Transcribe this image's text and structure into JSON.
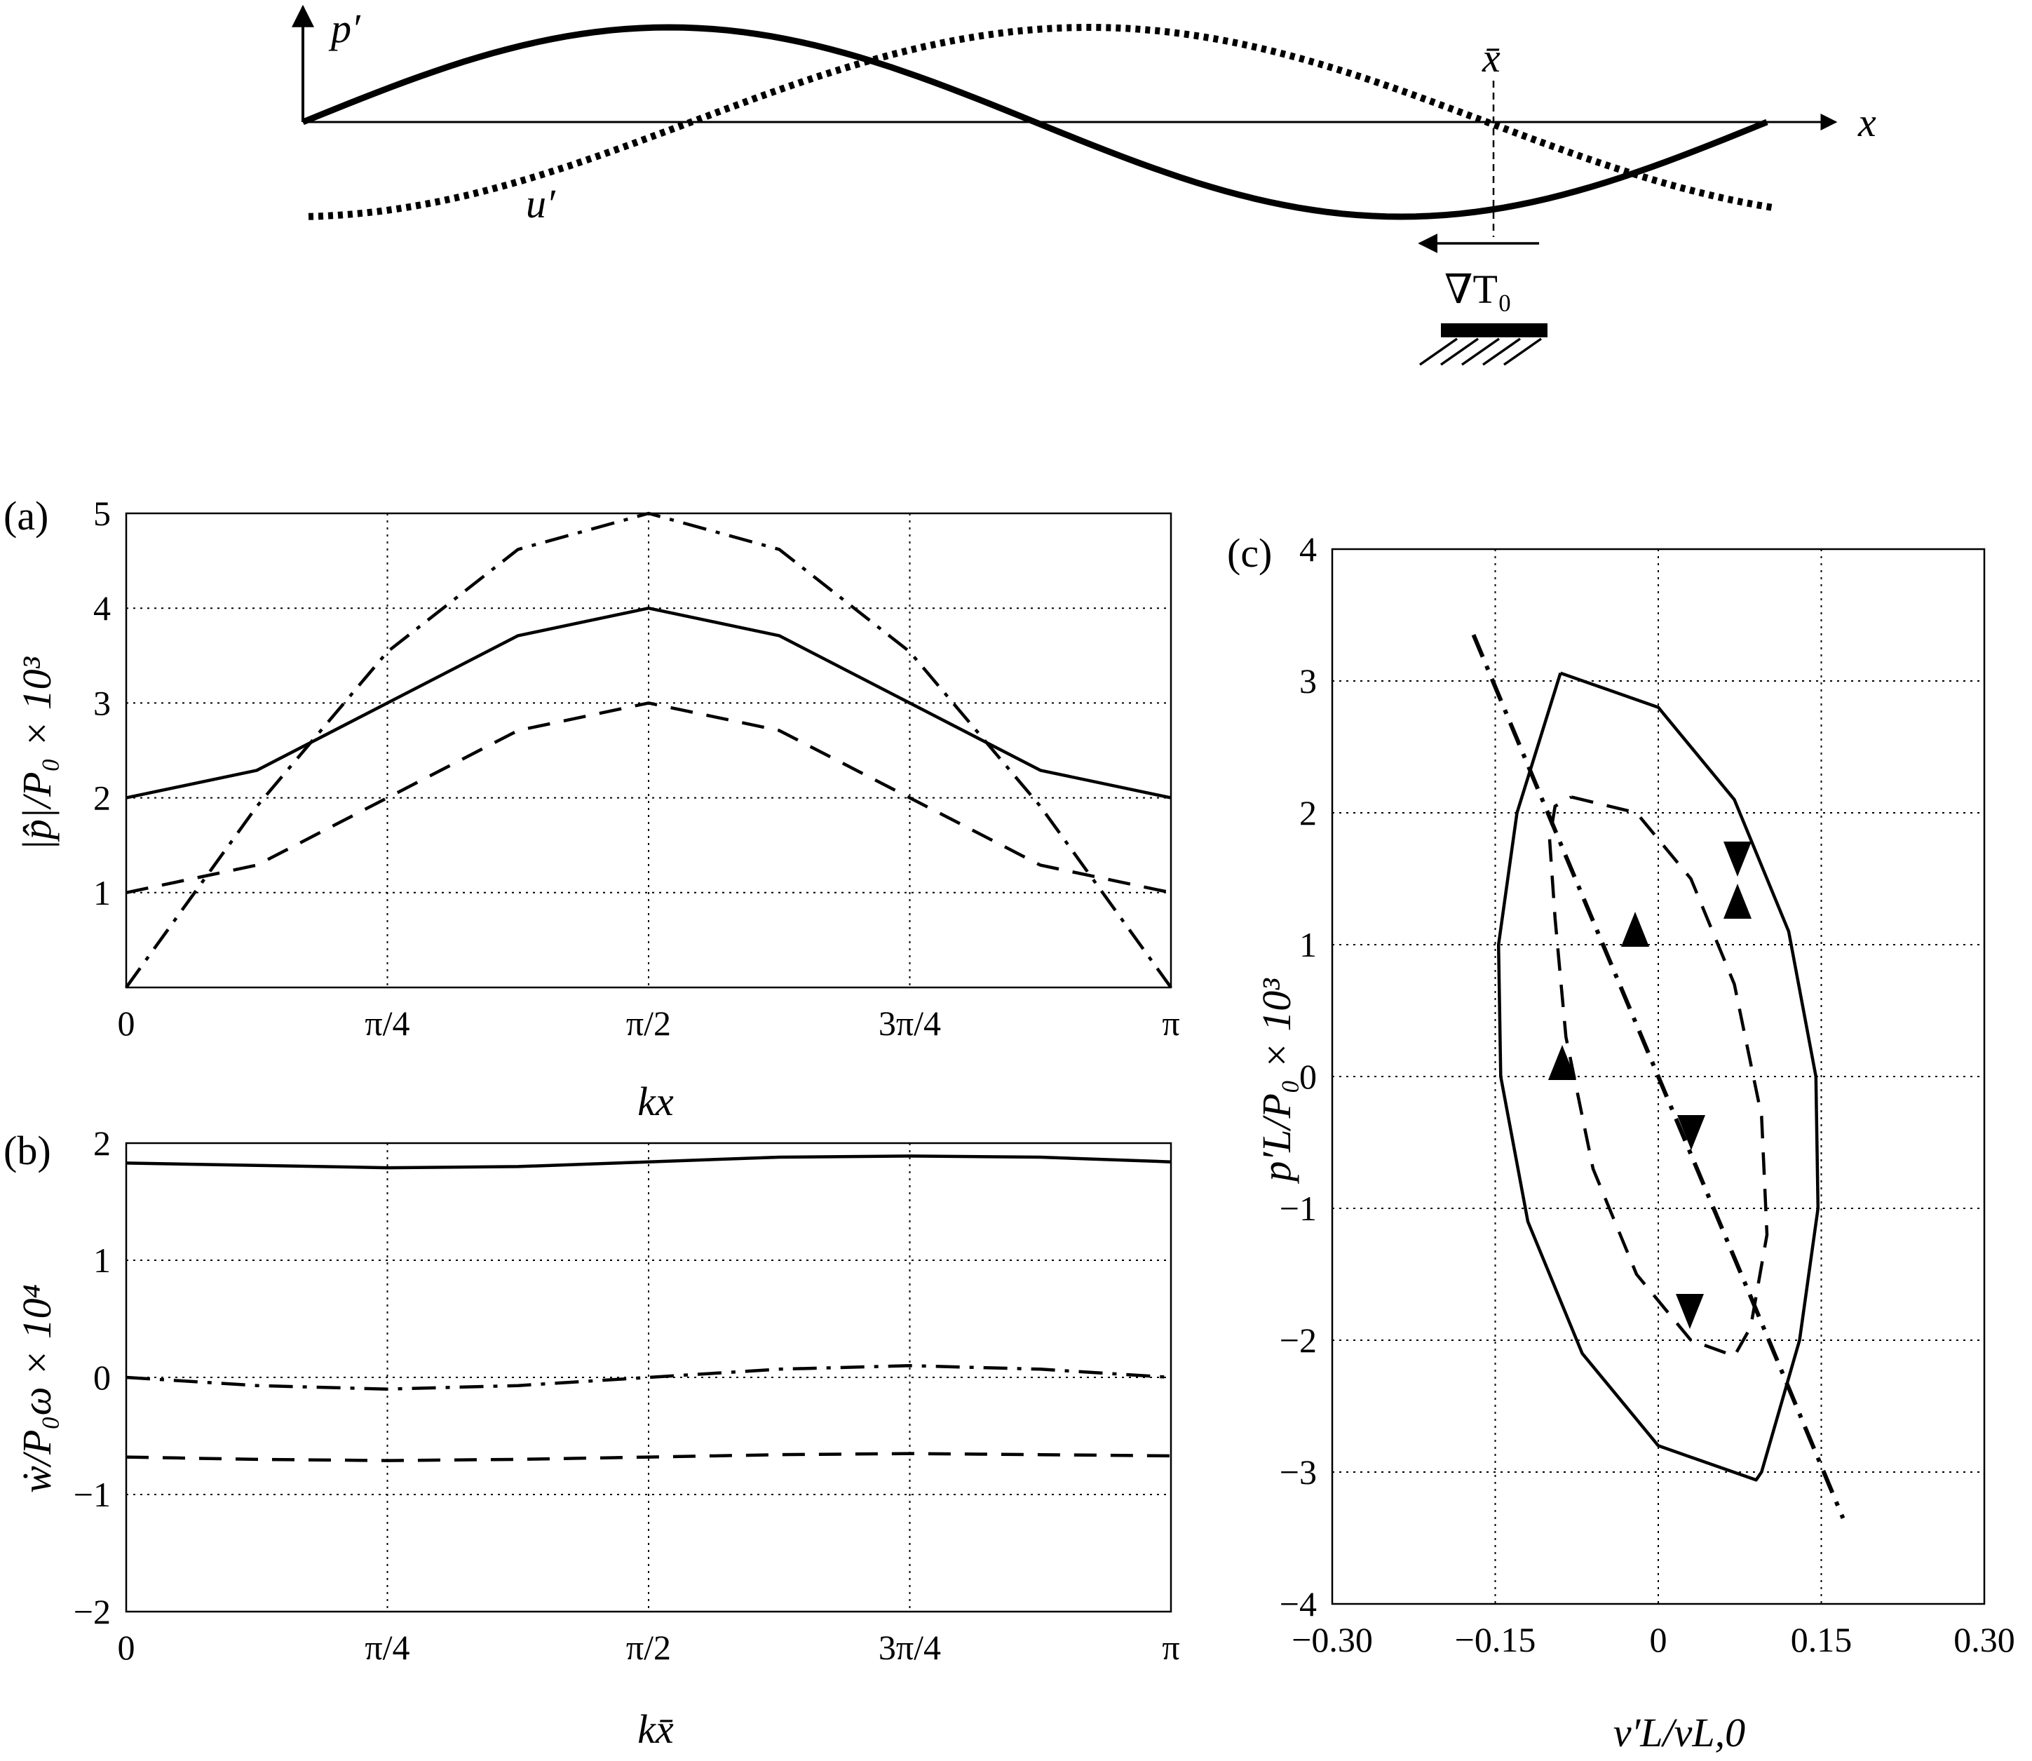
{
  "colors": {
    "ink": "#000000",
    "grid": "#000000",
    "background": "#ffffff"
  },
  "schematic": {
    "p_label": "p′",
    "u_label": "u′",
    "x_label": "x",
    "xbar_label": "x̄",
    "grad_label": "∇T₀"
  },
  "chart_data": [
    {
      "id": "a",
      "panel_label": "(a)",
      "type": "line",
      "xlabel": "kx",
      "ylabel": "|p̂|/P₀ × 10³",
      "xlim": [
        0,
        3.14159
      ],
      "ylim": [
        0,
        5
      ],
      "grid": true,
      "x_ticks": [
        0,
        0.7854,
        1.5708,
        2.3562,
        3.14159
      ],
      "x_tick_labels": [
        "0",
        "π/4",
        "π/2",
        "3π/4",
        "π"
      ],
      "y_ticks": [
        1,
        2,
        3,
        4,
        5
      ],
      "y_tick_labels": [
        "1",
        "2",
        "3",
        "4",
        "5"
      ],
      "series": [
        {
          "name": "solid",
          "style": "solid",
          "x": [
            0,
            0.3927,
            0.7854,
            1.1781,
            1.5708,
            1.9635,
            2.3562,
            2.7489,
            3.14159
          ],
          "y": [
            2.0,
            2.29,
            3.0,
            3.71,
            4.0,
            3.71,
            3.0,
            2.29,
            2.0
          ]
        },
        {
          "name": "dashed",
          "style": "dashed",
          "x": [
            0,
            0.3927,
            0.7854,
            1.1781,
            1.5708,
            1.9635,
            2.3562,
            2.7489,
            3.14159
          ],
          "y": [
            1.0,
            1.29,
            2.0,
            2.71,
            3.0,
            2.71,
            2.0,
            1.29,
            1.0
          ]
        },
        {
          "name": "dash-dot",
          "style": "dashdot",
          "x": [
            0,
            0.3927,
            0.7854,
            1.1781,
            1.5708,
            1.9635,
            2.3562,
            2.7489,
            3.14159
          ],
          "y": [
            0.0,
            1.91,
            3.54,
            4.62,
            5.0,
            4.62,
            3.54,
            1.91,
            0.0
          ]
        }
      ]
    },
    {
      "id": "b",
      "panel_label": "(b)",
      "type": "line",
      "xlabel": "kx̄",
      "ylabel": "ẇ/P₀ω × 10⁴",
      "xlim": [
        0,
        3.14159
      ],
      "ylim": [
        -2,
        2
      ],
      "grid": true,
      "x_ticks": [
        0,
        0.7854,
        1.5708,
        2.3562,
        3.14159
      ],
      "x_tick_labels": [
        "0",
        "π/4",
        "π/2",
        "3π/4",
        "π"
      ],
      "y_ticks": [
        -2,
        -1,
        0,
        1,
        2
      ],
      "y_tick_labels": [
        "−2",
        "−1",
        "0",
        "1",
        "2"
      ],
      "series": [
        {
          "name": "solid",
          "style": "solid",
          "x": [
            0,
            0.3927,
            0.7854,
            1.1781,
            1.5708,
            1.9635,
            2.3562,
            2.7489,
            3.14159
          ],
          "y": [
            1.83,
            1.81,
            1.79,
            1.8,
            1.84,
            1.88,
            1.89,
            1.88,
            1.84
          ]
        },
        {
          "name": "dash-dot",
          "style": "dashdot",
          "x": [
            0,
            0.3927,
            0.7854,
            1.1781,
            1.5708,
            1.9635,
            2.3562,
            2.7489,
            3.14159
          ],
          "y": [
            0.0,
            -0.07,
            -0.1,
            -0.07,
            0.0,
            0.07,
            0.1,
            0.07,
            0.0
          ]
        },
        {
          "name": "dashed",
          "style": "dashed",
          "x": [
            0,
            0.3927,
            0.7854,
            1.1781,
            1.5708,
            1.9635,
            2.3562,
            2.7489,
            3.14159
          ],
          "y": [
            -0.68,
            -0.7,
            -0.71,
            -0.7,
            -0.68,
            -0.66,
            -0.65,
            -0.66,
            -0.67
          ]
        }
      ]
    },
    {
      "id": "c",
      "panel_label": "(c)",
      "type": "line",
      "xlabel": "v′L/vL,0",
      "ylabel": "p′L/P₀ × 10³",
      "xlim": [
        -0.3,
        0.3
      ],
      "ylim": [
        -4,
        4
      ],
      "grid": true,
      "x_ticks": [
        -0.3,
        -0.15,
        0,
        0.15,
        0.3
      ],
      "x_tick_labels": [
        "−0.30",
        "−0.15",
        "0",
        "0.15",
        "0.30"
      ],
      "y_ticks": [
        -4,
        -3,
        -2,
        -1,
        0,
        1,
        2,
        3,
        4
      ],
      "y_tick_labels": [
        "−4",
        "−3",
        "−2",
        "−1",
        "0",
        "1",
        "2",
        "3",
        "4"
      ],
      "series": [
        {
          "name": "solid ellipse",
          "style": "solid",
          "x": [
            -0.09,
            0.0,
            0.07,
            0.12,
            0.145,
            0.147,
            0.13,
            0.095,
            0.09,
            0.0,
            -0.07,
            -0.12,
            -0.145,
            -0.147,
            -0.13,
            -0.09
          ],
          "y": [
            3.06,
            2.8,
            2.1,
            1.1,
            0.0,
            -1.0,
            -2.0,
            -3.0,
            -3.06,
            -2.8,
            -2.1,
            -1.1,
            0.0,
            1.0,
            2.0,
            3.06
          ]
        },
        {
          "name": "dashed ellipse",
          "style": "dashed",
          "x": [
            -0.08,
            -0.02,
            0.03,
            0.07,
            0.095,
            0.1,
            0.085,
            0.07,
            0.03,
            -0.02,
            -0.06,
            -0.085,
            -0.095,
            -0.1,
            -0.095,
            -0.08
          ],
          "y": [
            2.12,
            2.0,
            1.5,
            0.7,
            -0.3,
            -1.2,
            -1.9,
            -2.12,
            -2.0,
            -1.5,
            -0.7,
            0.3,
            1.2,
            1.8,
            2.05,
            2.12
          ]
        },
        {
          "name": "dash-dot line",
          "style": "dashdot",
          "x": [
            -0.17,
            -0.085,
            0.0,
            0.085,
            0.17
          ],
          "y": [
            3.35,
            1.67,
            0.0,
            -1.67,
            -3.35
          ]
        }
      ]
    }
  ]
}
